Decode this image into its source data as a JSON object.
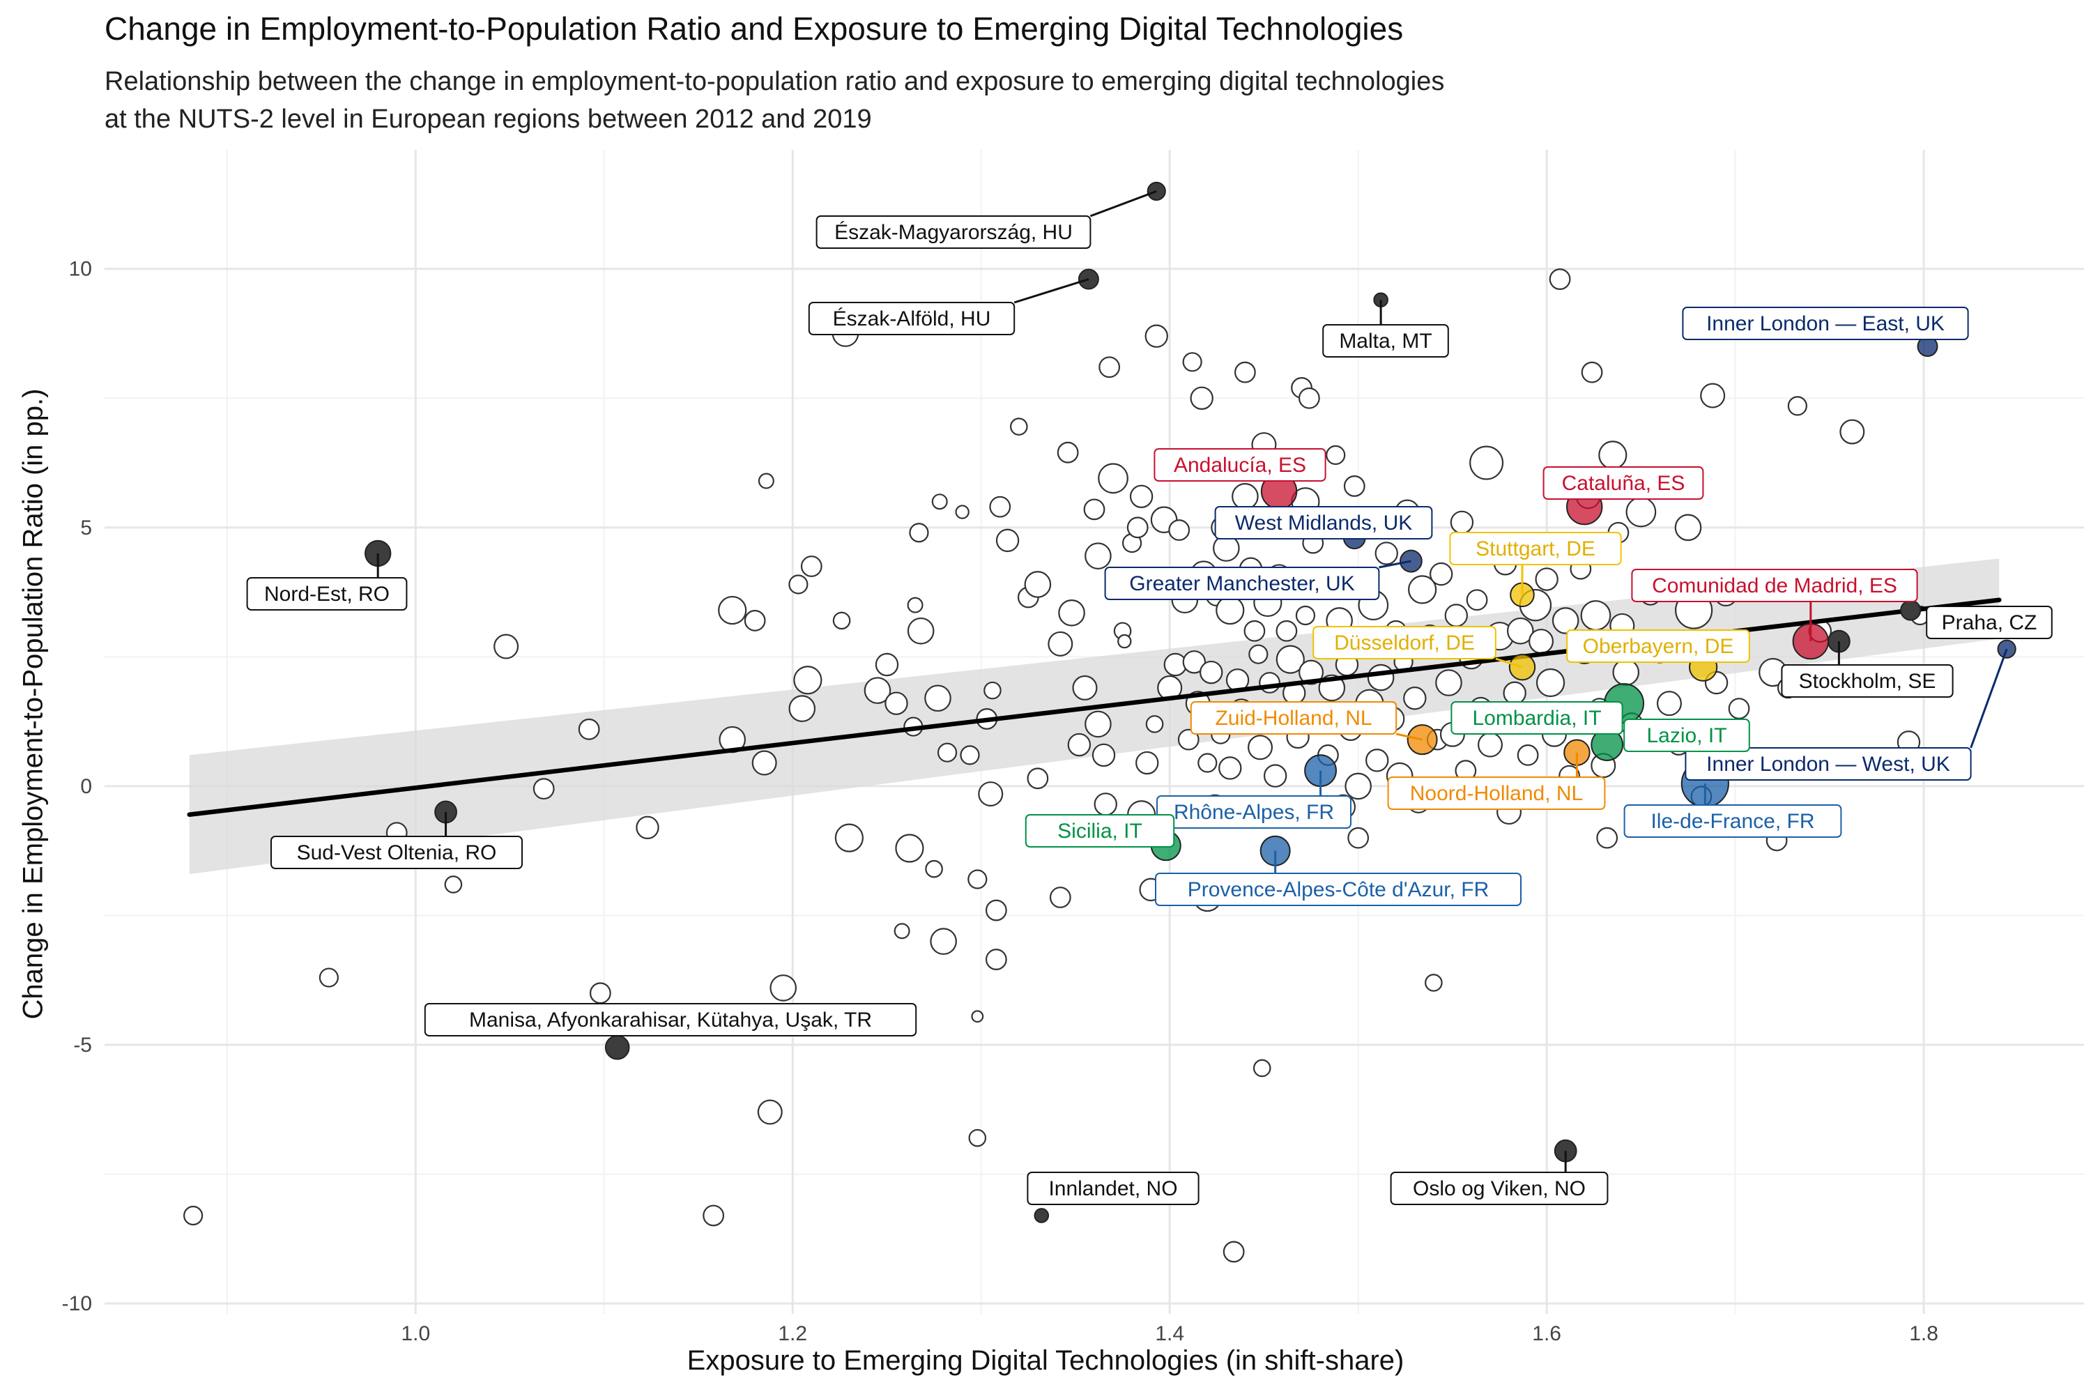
{
  "chart_data": {
    "type": "scatter",
    "title": "Change in Employment-to-Population Ratio and Exposure to Emerging Digital Technologies",
    "subtitle": [
      "Relationship between the change in employment-to-population ratio and exposure to emerging digital technologies",
      "at the NUTS-2 level in European regions between 2012 and 2019"
    ],
    "xlabel": "Exposure to Emerging Digital Technologies (in shift-share)",
    "ylabel": "Change in Employment-to-Population Ratio (in pp.)",
    "xlim": [
      0.835,
      1.885
    ],
    "ylim": [
      -10.2,
      12.3
    ],
    "x_ticks": [
      1.0,
      1.2,
      1.4,
      1.6,
      1.8
    ],
    "x_tick_labels": [
      "1.0",
      "1.2",
      "1.4",
      "1.6",
      "1.8"
    ],
    "y_ticks": [
      -10,
      -5,
      0,
      5,
      10
    ],
    "y_tick_labels": [
      "-10",
      "-5",
      "0",
      "5",
      "10"
    ],
    "grid": true,
    "colors": {
      "background_point": "#ffffff",
      "point_outline": "#333333",
      "other_highlight": "#3d3d3d",
      "UK": "#0a2a6b",
      "ES": "#c8102e",
      "DE": "#f2c200",
      "NL": "#f08a00",
      "IT": "#009246",
      "FR": "#1b60a8",
      "fit_line": "#000000",
      "ci_band": "#d9d9d9"
    },
    "trend": {
      "x": [
        0.88,
        1.84
      ],
      "y": [
        -0.55,
        3.6
      ],
      "ci_lower": [
        -1.7,
        2.85
      ],
      "ci_upper": [
        0.6,
        4.4
      ]
    },
    "highlighted": [
      {
        "label": "Észak-Magyarország, HU",
        "x": 1.393,
        "y": 11.5,
        "size": 0.9,
        "group": "other"
      },
      {
        "label": "Észak-Alföld, HU",
        "x": 1.357,
        "y": 9.8,
        "size": 1.0,
        "group": "other"
      },
      {
        "label": "Malta, MT",
        "x": 1.512,
        "y": 9.4,
        "size": 0.7,
        "group": "other"
      },
      {
        "label": "Inner London — East, UK",
        "x": 1.802,
        "y": 8.5,
        "size": 1.0,
        "group": "UK"
      },
      {
        "label": "Andalucía, ES",
        "x": 1.458,
        "y": 5.7,
        "size": 1.8,
        "group": "ES"
      },
      {
        "label": "Cataluña, ES",
        "x": 1.62,
        "y": 5.4,
        "size": 1.8,
        "group": "ES"
      },
      {
        "label": "West Midlands, UK",
        "x": 1.498,
        "y": 4.8,
        "size": 1.1,
        "group": "UK"
      },
      {
        "label": "Greater Manchester, UK",
        "x": 1.528,
        "y": 4.35,
        "size": 1.1,
        "group": "UK"
      },
      {
        "label": "Stuttgart, DE",
        "x": 1.587,
        "y": 3.7,
        "size": 1.2,
        "group": "DE"
      },
      {
        "label": "Nord-Est, RO",
        "x": 0.98,
        "y": 4.5,
        "size": 1.3,
        "group": "other"
      },
      {
        "label": "Comunidad de Madrid, ES",
        "x": 1.74,
        "y": 2.8,
        "size": 1.8,
        "group": "ES"
      },
      {
        "label": "Praha, CZ",
        "x": 1.793,
        "y": 3.4,
        "size": 1.0,
        "group": "other"
      },
      {
        "label": "Stockholm, SE",
        "x": 1.755,
        "y": 2.8,
        "size": 1.1,
        "group": "other"
      },
      {
        "label": "Düsseldorf, DE",
        "x": 1.587,
        "y": 2.3,
        "size": 1.3,
        "group": "DE"
      },
      {
        "label": "Oberbayern, DE",
        "x": 1.683,
        "y": 2.3,
        "size": 1.4,
        "group": "DE"
      },
      {
        "label": "Inner London — West, UK",
        "x": 1.844,
        "y": 2.65,
        "size": 0.9,
        "group": "UK"
      },
      {
        "label": "Zuid-Holland, NL",
        "x": 1.534,
        "y": 0.9,
        "size": 1.5,
        "group": "NL"
      },
      {
        "label": "Lombardia, IT",
        "x": 1.641,
        "y": 1.6,
        "size": 2.0,
        "group": "IT"
      },
      {
        "label": "Lazio, IT",
        "x": 1.632,
        "y": 0.8,
        "size": 1.6,
        "group": "IT"
      },
      {
        "label": "Noord-Holland, NL",
        "x": 1.616,
        "y": 0.65,
        "size": 1.3,
        "group": "NL"
      },
      {
        "label": "Ile-de-France, FR",
        "x": 1.684,
        "y": 0.05,
        "size": 2.4,
        "group": "FR"
      },
      {
        "label": "Rhône-Alpes, FR",
        "x": 1.48,
        "y": 0.3,
        "size": 1.6,
        "group": "FR"
      },
      {
        "label": "Sicilia, IT",
        "x": 1.398,
        "y": -1.15,
        "size": 1.5,
        "group": "IT"
      },
      {
        "label": "Provence-Alpes-Côte d'Azur, FR",
        "x": 1.456,
        "y": -1.25,
        "size": 1.5,
        "group": "FR"
      },
      {
        "label": "Sud-Vest Oltenia, RO",
        "x": 1.016,
        "y": -0.5,
        "size": 1.1,
        "group": "other"
      },
      {
        "label": "Manisa, Afyonkarahisar, Kütahya, Uşak, TR",
        "x": 1.107,
        "y": -5.05,
        "size": 1.2,
        "group": "other"
      },
      {
        "label": "Innlandet, NO",
        "x": 1.332,
        "y": -8.3,
        "size": 0.7,
        "group": "other"
      },
      {
        "label": "Oslo og Viken, NO",
        "x": 1.61,
        "y": -7.05,
        "size": 1.1,
        "group": "other"
      }
    ],
    "other_points": [
      [
        0.882,
        -8.3,
        1.0
      ],
      [
        0.954,
        -3.7,
        1.0
      ],
      [
        0.99,
        -0.9,
        1.1
      ],
      [
        1.02,
        -1.9,
        0.9
      ],
      [
        1.048,
        2.7,
        1.3
      ],
      [
        1.068,
        -0.05,
        1.1
      ],
      [
        1.092,
        1.1,
        1.1
      ],
      [
        1.098,
        -4.0,
        1.1
      ],
      [
        1.123,
        -0.8,
        1.2
      ],
      [
        1.158,
        -8.3,
        1.1
      ],
      [
        1.168,
        3.4,
        1.5
      ],
      [
        1.168,
        0.9,
        1.4
      ],
      [
        1.18,
        3.2,
        1.1
      ],
      [
        1.185,
        0.45,
        1.3
      ],
      [
        1.186,
        5.9,
        0.8
      ],
      [
        1.188,
        -6.3,
        1.3
      ],
      [
        1.195,
        -3.9,
        1.4
      ],
      [
        1.203,
        3.9,
        1.0
      ],
      [
        1.205,
        1.5,
        1.4
      ],
      [
        1.208,
        2.05,
        1.5
      ],
      [
        1.21,
        4.25,
        1.1
      ],
      [
        1.226,
        3.2,
        0.9
      ],
      [
        1.228,
        8.75,
        1.4
      ],
      [
        1.23,
        -1.0,
        1.5
      ],
      [
        1.245,
        1.85,
        1.4
      ],
      [
        1.25,
        2.35,
        1.2
      ],
      [
        1.255,
        1.6,
        1.2
      ],
      [
        1.258,
        -2.8,
        0.8
      ],
      [
        1.262,
        -1.2,
        1.5
      ],
      [
        1.264,
        1.15,
        1.0
      ],
      [
        1.265,
        3.5,
        0.8
      ],
      [
        1.267,
        4.9,
        1.0
      ],
      [
        1.268,
        3.0,
        1.4
      ],
      [
        1.275,
        -1.6,
        0.9
      ],
      [
        1.277,
        1.7,
        1.4
      ],
      [
        1.278,
        5.5,
        0.8
      ],
      [
        1.28,
        -3.0,
        1.4
      ],
      [
        1.282,
        0.65,
        1.0
      ],
      [
        1.29,
        5.3,
        0.7
      ],
      [
        1.294,
        0.6,
        1.0
      ],
      [
        1.298,
        -1.8,
        1.0
      ],
      [
        1.298,
        -6.8,
        0.9
      ],
      [
        1.298,
        -4.45,
        0.6
      ],
      [
        1.303,
        1.3,
        1.1
      ],
      [
        1.305,
        -0.15,
        1.3
      ],
      [
        1.306,
        1.85,
        0.9
      ],
      [
        1.308,
        -2.4,
        1.1
      ],
      [
        1.308,
        -3.35,
        1.1
      ],
      [
        1.31,
        5.4,
        1.1
      ],
      [
        1.314,
        4.75,
        1.2
      ],
      [
        1.32,
        6.95,
        0.9
      ],
      [
        1.325,
        3.65,
        1.1
      ],
      [
        1.33,
        3.9,
        1.4
      ],
      [
        1.33,
        0.15,
        1.1
      ],
      [
        1.342,
        -2.15,
        1.1
      ],
      [
        1.342,
        2.75,
        1.3
      ],
      [
        1.346,
        6.45,
        1.1
      ],
      [
        1.348,
        3.35,
        1.4
      ],
      [
        1.352,
        0.8,
        1.2
      ],
      [
        1.355,
        1.9,
        1.3
      ],
      [
        1.36,
        5.35,
        1.1
      ],
      [
        1.362,
        4.45,
        1.4
      ],
      [
        1.362,
        1.2,
        1.4
      ],
      [
        1.365,
        0.6,
        1.2
      ],
      [
        1.366,
        -0.35,
        1.2
      ],
      [
        1.368,
        8.1,
        1.1
      ],
      [
        1.37,
        5.95,
        1.6
      ],
      [
        1.375,
        3.0,
        0.9
      ],
      [
        1.376,
        2.8,
        0.7
      ],
      [
        1.38,
        4.7,
        1.0
      ],
      [
        1.383,
        5.0,
        1.1
      ],
      [
        1.385,
        5.6,
        1.2
      ],
      [
        1.385,
        -0.55,
        1.5
      ],
      [
        1.388,
        0.45,
        1.2
      ],
      [
        1.39,
        -2.0,
        1.2
      ],
      [
        1.392,
        1.2,
        0.9
      ],
      [
        1.393,
        8.7,
        1.2
      ],
      [
        1.397,
        5.15,
        1.4
      ],
      [
        1.4,
        1.9,
        1.3
      ],
      [
        1.403,
        2.35,
        1.2
      ],
      [
        1.405,
        4.95,
        1.1
      ],
      [
        1.408,
        3.6,
        1.4
      ],
      [
        1.41,
        0.9,
        1.1
      ],
      [
        1.412,
        8.2,
        1.0
      ],
      [
        1.413,
        2.4,
        1.2
      ],
      [
        1.415,
        1.6,
        1.3
      ],
      [
        1.417,
        7.5,
        1.2
      ],
      [
        1.418,
        4.1,
        1.4
      ],
      [
        1.42,
        -2.15,
        1.5
      ],
      [
        1.42,
        0.45,
        1.0
      ],
      [
        1.422,
        2.2,
        1.2
      ],
      [
        1.424,
        -0.4,
        1.3
      ],
      [
        1.425,
        3.7,
        1.2
      ],
      [
        1.427,
        1.0,
        1.0
      ],
      [
        1.428,
        5.0,
        1.2
      ],
      [
        1.43,
        4.6,
        1.4
      ],
      [
        1.432,
        3.4,
        1.5
      ],
      [
        1.432,
        0.35,
        1.2
      ],
      [
        1.434,
        -9.0,
        1.1
      ],
      [
        1.436,
        2.05,
        1.2
      ],
      [
        1.438,
        1.45,
        1.3
      ],
      [
        1.44,
        8.0,
        1.1
      ],
      [
        1.44,
        5.6,
        1.4
      ],
      [
        1.443,
        4.2,
        1.2
      ],
      [
        1.445,
        3.0,
        1.1
      ],
      [
        1.447,
        2.55,
        1.0
      ],
      [
        1.448,
        0.75,
        1.3
      ],
      [
        1.449,
        -5.45,
        0.9
      ],
      [
        1.45,
        6.6,
        1.3
      ],
      [
        1.452,
        3.55,
        1.5
      ],
      [
        1.453,
        2.0,
        1.1
      ],
      [
        1.454,
        1.4,
        1.3
      ],
      [
        1.456,
        0.2,
        1.2
      ],
      [
        1.458,
        4.05,
        1.3
      ],
      [
        1.46,
        5.0,
        1.0
      ],
      [
        1.462,
        3.0,
        1.1
      ],
      [
        1.464,
        2.45,
        1.5
      ],
      [
        1.466,
        1.8,
        1.2
      ],
      [
        1.468,
        0.95,
        1.2
      ],
      [
        1.47,
        7.7,
        1.1
      ],
      [
        1.472,
        5.5,
        1.5
      ],
      [
        1.472,
        3.3,
        1.0
      ],
      [
        1.474,
        7.5,
        1.1
      ],
      [
        1.475,
        2.2,
        1.3
      ],
      [
        1.476,
        4.7,
        1.1
      ],
      [
        1.478,
        1.4,
        1.2
      ],
      [
        1.48,
        3.9,
        1.5
      ],
      [
        1.482,
        2.8,
        1.1
      ],
      [
        1.484,
        0.6,
        1.1
      ],
      [
        1.486,
        1.9,
        1.4
      ],
      [
        1.488,
        6.4,
        1.0
      ],
      [
        1.49,
        3.2,
        1.4
      ],
      [
        1.492,
        -0.4,
        1.3
      ],
      [
        1.494,
        2.35,
        1.2
      ],
      [
        1.496,
        1.1,
        1.2
      ],
      [
        1.498,
        5.8,
        1.1
      ],
      [
        1.5,
        0.0,
        1.4
      ],
      [
        1.5,
        -1.0,
        1.1
      ],
      [
        1.502,
        2.7,
        1.3
      ],
      [
        1.505,
        4.0,
        1.1
      ],
      [
        1.506,
        1.6,
        1.5
      ],
      [
        1.508,
        3.5,
        1.6
      ],
      [
        1.51,
        0.5,
        1.2
      ],
      [
        1.512,
        2.1,
        1.4
      ],
      [
        1.515,
        4.5,
        1.2
      ],
      [
        1.518,
        1.3,
        1.3
      ],
      [
        1.52,
        3.0,
        1.1
      ],
      [
        1.522,
        0.2,
        1.4
      ],
      [
        1.524,
        2.4,
        1.0
      ],
      [
        1.526,
        5.3,
        1.3
      ],
      [
        1.53,
        1.7,
        1.2
      ],
      [
        1.532,
        -0.3,
        1.2
      ],
      [
        1.534,
        3.8,
        1.5
      ],
      [
        1.538,
        2.9,
        1.2
      ],
      [
        1.54,
        -3.8,
        0.9
      ],
      [
        1.542,
        0.9,
        1.1
      ],
      [
        1.544,
        4.1,
        1.2
      ],
      [
        1.548,
        2.0,
        1.4
      ],
      [
        1.55,
        1.0,
        1.3
      ],
      [
        1.552,
        3.3,
        1.2
      ],
      [
        1.555,
        5.1,
        1.2
      ],
      [
        1.557,
        0.3,
        1.1
      ],
      [
        1.56,
        2.5,
        1.3
      ],
      [
        1.563,
        3.6,
        1.1
      ],
      [
        1.565,
        1.5,
        1.2
      ],
      [
        1.568,
        6.25,
        1.8
      ],
      [
        1.57,
        0.8,
        1.3
      ],
      [
        1.575,
        2.9,
        1.5
      ],
      [
        1.578,
        4.3,
        1.2
      ],
      [
        1.58,
        -0.5,
        1.3
      ],
      [
        1.583,
        1.8,
        1.2
      ],
      [
        1.586,
        3.0,
        1.4
      ],
      [
        1.59,
        0.6,
        1.1
      ],
      [
        1.594,
        3.5,
        1.7
      ],
      [
        1.597,
        2.8,
        1.3
      ],
      [
        1.6,
        4.0,
        1.2
      ],
      [
        1.602,
        2.0,
        1.5
      ],
      [
        1.604,
        1.0,
        1.3
      ],
      [
        1.607,
        9.8,
        1.1
      ],
      [
        1.61,
        3.2,
        1.4
      ],
      [
        1.612,
        0.2,
        1.1
      ],
      [
        1.618,
        4.2,
        1.1
      ],
      [
        1.62,
        2.6,
        1.3
      ],
      [
        1.622,
        5.6,
        1.3
      ],
      [
        1.624,
        8.0,
        1.1
      ],
      [
        1.626,
        3.3,
        1.6
      ],
      [
        1.628,
        1.5,
        1.1
      ],
      [
        1.63,
        0.4,
        1.3
      ],
      [
        1.632,
        -1.0,
        1.1
      ],
      [
        1.635,
        6.4,
        1.5
      ],
      [
        1.638,
        4.9,
        1.1
      ],
      [
        1.64,
        3.1,
        1.3
      ],
      [
        1.642,
        2.2,
        1.4
      ],
      [
        1.645,
        1.2,
        1.2
      ],
      [
        1.65,
        5.3,
        1.6
      ],
      [
        1.655,
        3.7,
        1.1
      ],
      [
        1.66,
        2.6,
        1.2
      ],
      [
        1.665,
        1.6,
        1.3
      ],
      [
        1.67,
        0.8,
        1.1
      ],
      [
        1.675,
        5.0,
        1.4
      ],
      [
        1.678,
        3.4,
        2.0
      ],
      [
        1.682,
        -0.2,
        1.1
      ],
      [
        1.688,
        7.55,
        1.3
      ],
      [
        1.69,
        2.0,
        1.2
      ],
      [
        1.695,
        3.7,
        1.2
      ],
      [
        1.702,
        1.5,
        1.1
      ],
      [
        1.72,
        2.2,
        1.5
      ],
      [
        1.722,
        -1.05,
        1.1
      ],
      [
        1.728,
        1.9,
        1.1
      ],
      [
        1.733,
        7.35,
        1.0
      ],
      [
        1.745,
        3.0,
        1.2
      ],
      [
        1.762,
        6.85,
        1.3
      ],
      [
        1.792,
        0.85,
        1.2
      ],
      [
        1.798,
        3.3,
        1.0
      ]
    ]
  }
}
